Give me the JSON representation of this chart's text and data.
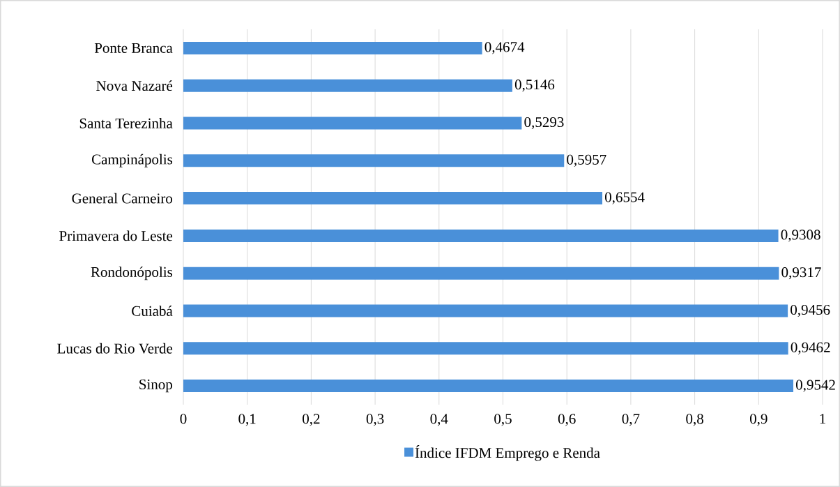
{
  "chart_data": {
    "type": "bar",
    "orientation": "horizontal",
    "categories": [
      "Ponte Branca",
      "Nova Nazaré",
      "Santa Terezinha",
      "Campinápolis",
      "General Carneiro",
      "Primavera do Leste",
      "Rondonópolis",
      "Cuiabá",
      "Lucas do Rio Verde",
      "Sinop"
    ],
    "series": [
      {
        "name": "Índice IFDM Emprego e Renda",
        "color": "#4a90d9",
        "values": [
          0.4674,
          0.5146,
          0.5293,
          0.5957,
          0.6554,
          0.9308,
          0.9317,
          0.9456,
          0.9462,
          0.9542
        ],
        "value_labels": [
          "0,4674",
          "0,5146",
          "0,5293",
          "0,5957",
          "0,6554",
          "0,9308",
          "0,9317",
          "0,9456",
          "0,9462",
          "0,9542"
        ]
      }
    ],
    "xlim": [
      0,
      1
    ],
    "xticks": [
      0,
      {
        "value": 0.1,
        "label": "0,1"
      },
      {
        "value": 0.2,
        "label": "0,2"
      },
      {
        "value": 0.3,
        "label": "0,3"
      },
      {
        "value": 0.4,
        "label": "0,4"
      },
      {
        "value": 0.5,
        "label": "0,5"
      },
      {
        "value": 0.6,
        "label": "0,6"
      },
      {
        "value": 0.7,
        "label": "0,7"
      },
      {
        "value": 0.8,
        "label": "0,8"
      },
      {
        "value": 0.9,
        "label": "0,9"
      },
      1
    ],
    "grid": "x",
    "legend": "bottom"
  }
}
